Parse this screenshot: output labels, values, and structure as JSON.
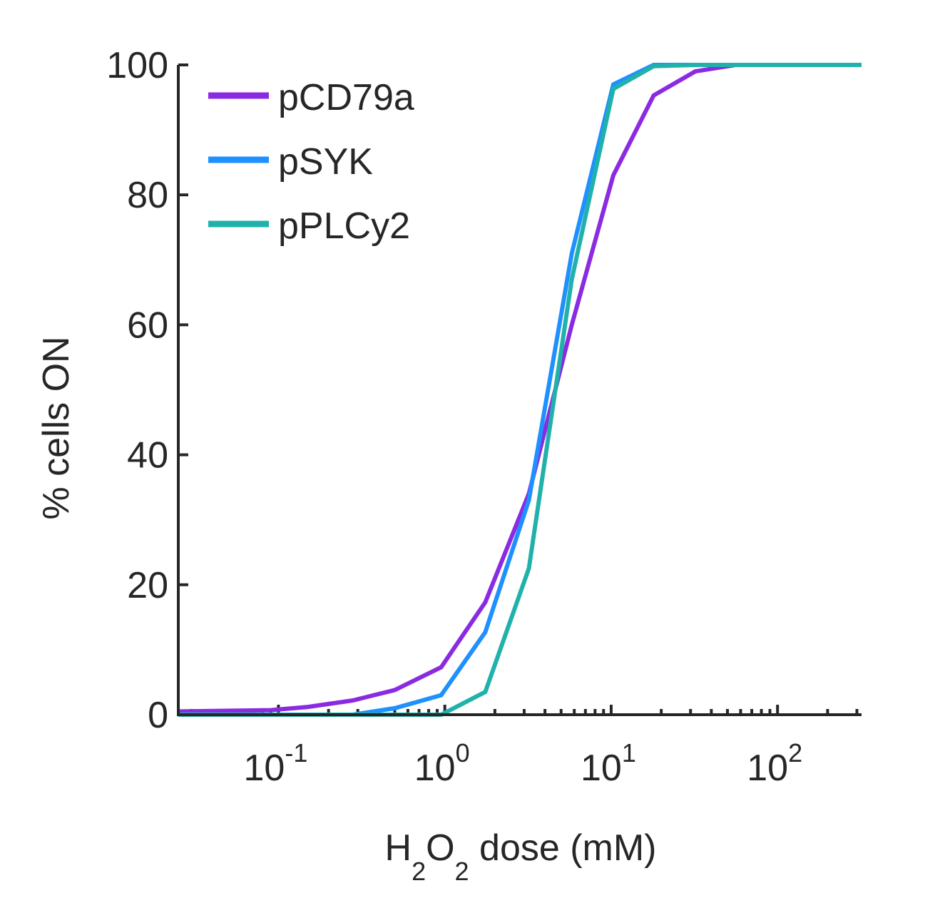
{
  "chart_data": {
    "type": "line",
    "xlabel": {
      "base": "H",
      "sub1": "2",
      "mid": "O",
      "sub2": "2",
      "rest": " dose (mM)"
    },
    "ylabel": "% cells ON",
    "xscale": "log",
    "xlim": [
      0.025,
      320
    ],
    "ylim": [
      0,
      100
    ],
    "yticks": [
      "0",
      "20",
      "40",
      "60",
      "80",
      "100"
    ],
    "xticks": [
      {
        "value": 0.1,
        "base": "10",
        "exp": "-1"
      },
      {
        "value": 1,
        "base": "10",
        "exp": "0"
      },
      {
        "value": 10,
        "base": "10",
        "exp": "1"
      },
      {
        "value": 100,
        "base": "10",
        "exp": "2"
      }
    ],
    "legend_position": "top-left",
    "series": [
      {
        "name": "pCD79a",
        "color": "#8a2be2",
        "x": [
          0.025,
          0.09,
          0.15,
          0.28,
          0.5,
          0.95,
          1.75,
          3.2,
          5.8,
          10.3,
          18,
          32,
          56,
          320
        ],
        "y": [
          0.5,
          0.7,
          1.2,
          2.2,
          3.8,
          7.3,
          17.3,
          34,
          60,
          83,
          95.3,
          99,
          100,
          100
        ]
      },
      {
        "name": "pSYK",
        "color": "#1e90ff",
        "x": [
          0.025,
          0.28,
          0.5,
          0.95,
          1.75,
          3.2,
          5.8,
          10.3,
          18,
          32,
          320
        ],
        "y": [
          0,
          0,
          1,
          3,
          12.7,
          33,
          71,
          97,
          100,
          100,
          100
        ]
      },
      {
        "name": "pPLCy2",
        "color": "#20b2aa",
        "x": [
          0.025,
          0.5,
          0.95,
          1.75,
          3.2,
          5.8,
          10.3,
          18,
          32,
          320
        ],
        "y": [
          0,
          0,
          0,
          3.5,
          22.5,
          67,
          96.3,
          99.8,
          100,
          100
        ]
      }
    ]
  }
}
